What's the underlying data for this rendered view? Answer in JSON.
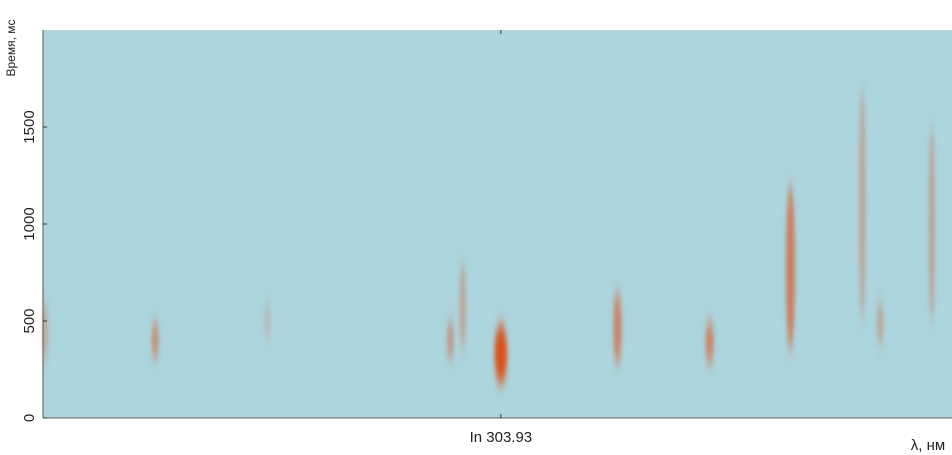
{
  "chart_data": {
    "type": "spectrogram",
    "y_label": "Время, мс",
    "x_label": "λ, нм",
    "ylim": [
      0,
      2000
    ],
    "yticks": [
      0,
      500,
      1000,
      1500
    ],
    "xlim": [
      299.85,
      307.95
    ],
    "xticks": [
      {
        "value": 303.93,
        "label": "In 303.93"
      }
    ],
    "background": "#acd5de",
    "color": "#d8521f",
    "streaks": {
      "x": [
        299.87,
        300.85,
        301.85,
        303.48,
        303.59,
        303.93,
        304.97,
        305.79,
        306.51,
        307.15,
        307.31,
        307.77
      ],
      "y_start": [
        300,
        300,
        400,
        300,
        350,
        180,
        280,
        280,
        350,
        500,
        380,
        500
      ],
      "y_end": [
        600,
        500,
        600,
        500,
        800,
        480,
        650,
        500,
        1200,
        1700,
        600,
        1500
      ],
      "intensity": [
        0.25,
        0.45,
        0.15,
        0.4,
        0.3,
        1,
        0.55,
        0.55,
        0.6,
        0.3,
        0.3,
        0.3
      ]
    }
  }
}
